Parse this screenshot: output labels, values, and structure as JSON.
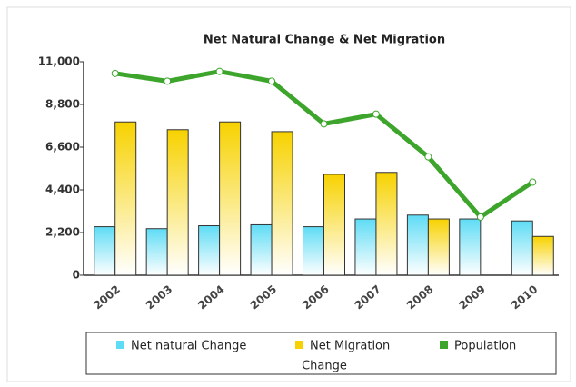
{
  "chart_data": {
    "type": "bar",
    "title": "Net Natural Change & Net Migration",
    "categories": [
      "2002",
      "2003",
      "2004",
      "2005",
      "2006",
      "2007",
      "2008",
      "2009",
      "2010"
    ],
    "series": [
      {
        "name": "Net natural Change",
        "color": "#5fdcf5",
        "type": "bar",
        "values": [
          2500,
          2400,
          2550,
          2600,
          2500,
          2900,
          3100,
          2900,
          2800
        ]
      },
      {
        "name": "Net Migration",
        "color": "#f7d200",
        "type": "bar",
        "values": [
          7900,
          7500,
          7900,
          7400,
          5200,
          5300,
          2900,
          null,
          2000
        ]
      },
      {
        "name": "Population",
        "color": "#3da52b",
        "type": "line",
        "values": [
          10400,
          10000,
          10500,
          10000,
          7800,
          8300,
          6100,
          3000,
          4800
        ]
      }
    ],
    "legend_title": "Change",
    "ylim": [
      0,
      11000
    ],
    "yticks": [
      0,
      {
        "value": 2200,
        "label": "2,200"
      },
      {
        "value": 4400,
        "label": "4,400"
      },
      {
        "value": 6600,
        "label": "6,600"
      },
      {
        "value": 8800,
        "label": "8,800"
      },
      {
        "value": 11000,
        "label": "11,000"
      }
    ],
    "grid": false,
    "legend": "bottom"
  }
}
